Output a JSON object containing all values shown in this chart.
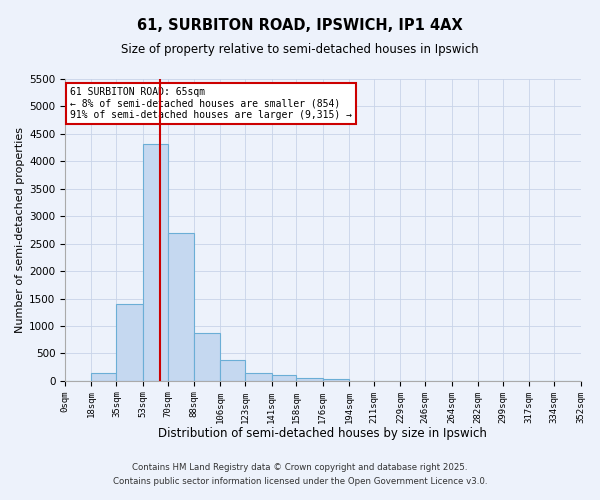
{
  "title": "61, SURBITON ROAD, IPSWICH, IP1 4AX",
  "subtitle": "Size of property relative to semi-detached houses in Ipswich",
  "xlabel": "Distribution of semi-detached houses by size in Ipswich",
  "ylabel": "Number of semi-detached properties",
  "bin_edges": [
    0,
    18,
    35,
    53,
    70,
    88,
    106,
    123,
    141,
    158,
    176,
    194,
    211,
    229,
    246,
    264,
    282,
    299,
    317,
    334,
    352
  ],
  "bin_labels": [
    "0sqm",
    "18sqm",
    "35sqm",
    "53sqm",
    "70sqm",
    "88sqm",
    "106sqm",
    "123sqm",
    "141sqm",
    "158sqm",
    "176sqm",
    "194sqm",
    "211sqm",
    "229sqm",
    "246sqm",
    "264sqm",
    "282sqm",
    "299sqm",
    "317sqm",
    "334sqm",
    "352sqm"
  ],
  "counts": [
    0,
    150,
    1400,
    4320,
    2700,
    880,
    380,
    150,
    100,
    60,
    30,
    0,
    0,
    0,
    0,
    0,
    0,
    0,
    0,
    0
  ],
  "bar_color": "#c5d8f0",
  "bar_edge_color": "#6baed6",
  "property_size": 65,
  "red_line_color": "#cc0000",
  "ylim": [
    0,
    5500
  ],
  "annotation_line1": "61 SURBITON ROAD: 65sqm",
  "annotation_line2": "← 8% of semi-detached houses are smaller (854)",
  "annotation_line3": "91% of semi-detached houses are larger (9,315) →",
  "annotation_box_color": "#cc0000",
  "footer1": "Contains HM Land Registry data © Crown copyright and database right 2025.",
  "footer2": "Contains public sector information licensed under the Open Government Licence v3.0.",
  "background_color": "#edf2fb",
  "grid_color": "#c8d4e8"
}
